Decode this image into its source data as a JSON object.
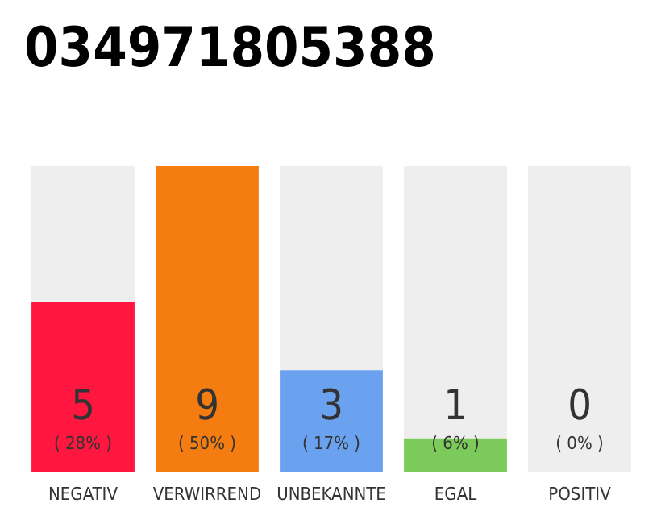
{
  "chart_data": {
    "type": "bar",
    "title": "034971805388",
    "stacked": true,
    "categories": [
      "NEGATIV",
      "VERWIRREND",
      "UNBEKANNTE",
      "EGAL",
      "POSITIV"
    ],
    "series": [
      {
        "colors": [
          "#ff173f",
          "#f47c10",
          "#6aa2f0",
          "#7ccb5a",
          "#9e9e9e"
        ],
        "values": [
          5,
          9,
          3,
          1,
          0
        ],
        "value_labels": [
          "5\n( 28% )",
          "9\n( 50% )",
          "3\n( 17% )",
          "1\n( 6% )",
          null
        ]
      },
      {
        "color": "#eeeeee",
        "values": [
          4,
          0,
          6,
          8,
          9
        ]
      }
    ],
    "annotations": [
      {
        "text": "0\n( 0% )",
        "x": "POSITIV",
        "y": 0
      }
    ],
    "grid": false
  }
}
